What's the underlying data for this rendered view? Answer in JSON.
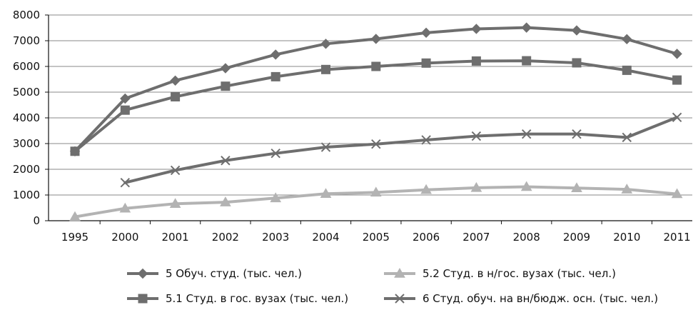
{
  "chart_data": {
    "type": "line",
    "title": "",
    "xlabel": "",
    "ylabel": "",
    "categories": [
      "1995",
      "2000",
      "2001",
      "2002",
      "2003",
      "2004",
      "2005",
      "2006",
      "2007",
      "2008",
      "2009",
      "2010",
      "2011"
    ],
    "ylim": [
      0,
      8000
    ],
    "yticks": [
      "0",
      "1000",
      "2000",
      "3000",
      "4000",
      "5000",
      "6000",
      "7000",
      "8000"
    ],
    "grid": "horizontal",
    "legend_position": "bottom",
    "series": [
      {
        "name": "5 Обуч. студ. (тыс. чел.)",
        "marker": "diamond",
        "color": "#6e6e6e",
        "values": [
          2700,
          4750,
          5450,
          5930,
          6460,
          6880,
          7070,
          7310,
          7460,
          7510,
          7400,
          7060,
          6490
        ]
      },
      {
        "name": "5.1 Студ. в гос. вузах (тыс. чел.)",
        "marker": "square",
        "color": "#6e6e6e",
        "values": [
          2700,
          4300,
          4820,
          5230,
          5600,
          5880,
          6000,
          6130,
          6210,
          6220,
          6140,
          5850,
          5470
        ]
      },
      {
        "name": "5.2 Студ. в н/гос. вузах (тыс. чел.)",
        "marker": "triangle",
        "color": "#b3b3b3",
        "values": [
          150,
          480,
          660,
          720,
          880,
          1050,
          1100,
          1200,
          1280,
          1320,
          1270,
          1220,
          1040
        ]
      },
      {
        "name": "6 Студ. обуч. на вн/бюдж. осн. (тыс. чел.)",
        "marker": "cross",
        "color": "#6e6e6e",
        "values": [
          null,
          1480,
          1960,
          2340,
          2620,
          2860,
          2980,
          3140,
          3290,
          3370,
          3370,
          3240,
          4020
        ]
      }
    ],
    "legend_order": [
      0,
      2,
      1,
      3
    ]
  }
}
